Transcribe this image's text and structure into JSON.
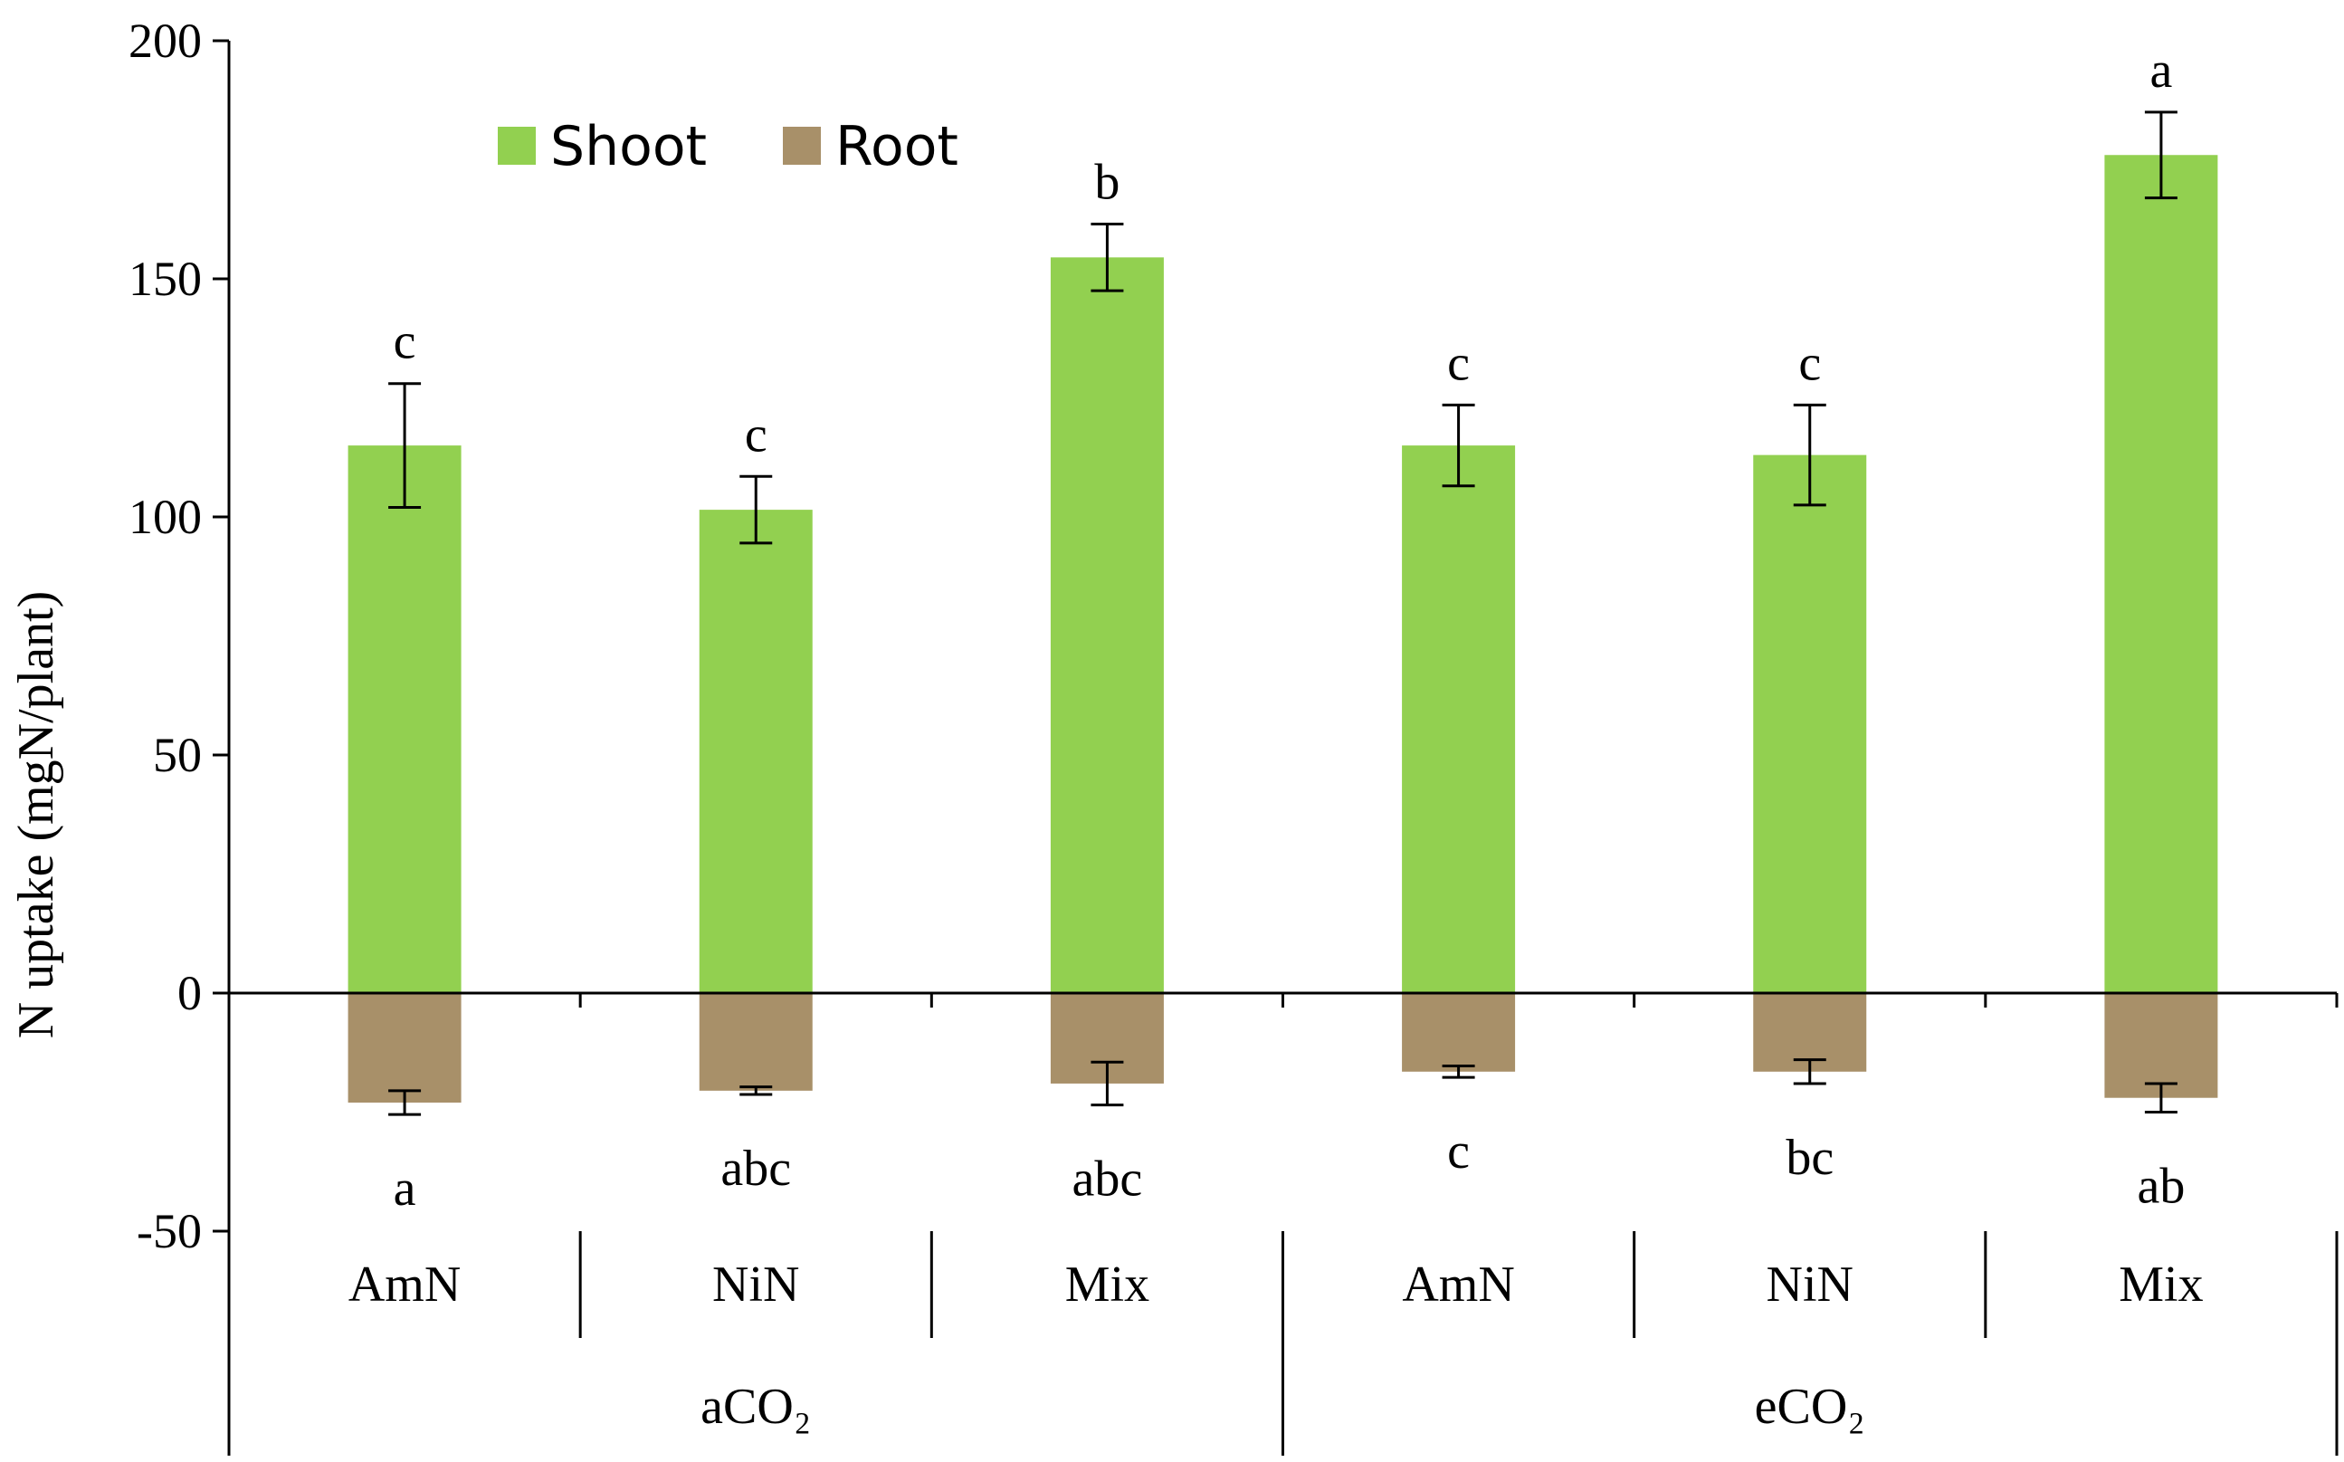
{
  "chart_data": {
    "type": "bar",
    "title": "",
    "xlabel": "",
    "ylabel": "N uptake (mgN/plant)",
    "ylim": [
      -50,
      200
    ],
    "yticks": [
      -50,
      0,
      50,
      100,
      150,
      200
    ],
    "ytick_labels": [
      "-50",
      "0",
      "50",
      "100",
      "150",
      "200"
    ],
    "categories": [
      "AmN",
      "NiN",
      "Mix",
      "AmN",
      "NiN",
      "Mix"
    ],
    "groups": [
      {
        "label": "aCO₂",
        "span": 3
      },
      {
        "label": "eCO₂",
        "span": 3
      }
    ],
    "legend_position": "top-left",
    "series": [
      {
        "name": "Shoot",
        "color": "#92d050",
        "values": [
          115,
          101.5,
          154.5,
          115,
          113,
          176
        ],
        "errors": [
          13,
          7,
          7,
          8.5,
          10.5,
          9
        ],
        "letters": [
          "c",
          "c",
          "b",
          "c",
          "c",
          "a"
        ]
      },
      {
        "name": "Root",
        "color": "#a89069",
        "values": [
          -23,
          -20.5,
          -19,
          -16.5,
          -16.5,
          -22
        ],
        "errors": [
          2.5,
          0.8,
          4.5,
          1.2,
          2.5,
          3
        ],
        "letters": [
          "a",
          "abc",
          "abc",
          "c",
          "bc",
          "ab"
        ]
      }
    ]
  }
}
